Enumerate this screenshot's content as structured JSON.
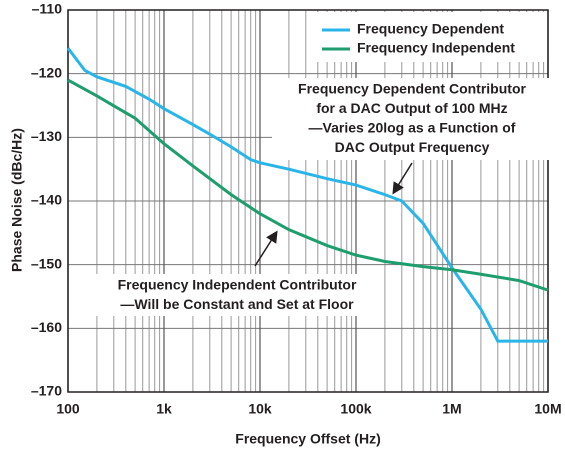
{
  "chart_data": {
    "type": "line",
    "xlabel": "Frequency Offset (Hz)",
    "ylabel": "Phase Noise (dBc/Hz)",
    "xlog": true,
    "grid": true,
    "minor_grid": true,
    "xlim": [
      100,
      10000000
    ],
    "xticks": [
      100,
      {
        "value": 1000,
        "label": "1k"
      },
      {
        "value": 10000,
        "label": "10k"
      },
      {
        "value": 100000,
        "label": "100k"
      },
      {
        "value": 1000000,
        "label": "1M"
      },
      {
        "value": 10000000,
        "label": "10M"
      }
    ],
    "ylim": [
      -170,
      -110
    ],
    "yticks": [
      {
        "value": -170,
        "label": "–170"
      },
      {
        "value": -160,
        "label": "–160"
      },
      {
        "value": -150,
        "label": "–150"
      },
      {
        "value": -140,
        "label": "–140"
      },
      {
        "value": -130,
        "label": "–130"
      },
      {
        "value": -120,
        "label": "–120"
      },
      {
        "value": -110,
        "label": "–110"
      }
    ],
    "legend": "upper right",
    "series": [
      {
        "name": "Frequency Dependent",
        "color": "#29b5e8",
        "x": [
          100,
          150,
          200,
          400,
          700,
          1000,
          2000,
          3000,
          5000,
          8000,
          10000,
          20000,
          50000,
          100000,
          200000,
          300000,
          500000,
          1000000,
          2000000,
          3000000,
          10000000
        ],
        "values": [
          -116,
          -119.5,
          -120.5,
          -122,
          -124,
          -125.5,
          -128,
          -129.5,
          -131.5,
          -133.5,
          -134,
          -135,
          -136.5,
          -137.5,
          -139,
          -140,
          -143.5,
          -150.5,
          -157,
          -162,
          -162
        ]
      },
      {
        "name": "Frequency Independent",
        "color": "#1e9e6e",
        "x": [
          100,
          200,
          500,
          1000,
          2000,
          5000,
          10000,
          20000,
          50000,
          100000,
          200000,
          500000,
          1000000,
          2000000,
          5000000,
          10000000
        ],
        "values": [
          -121,
          -123.5,
          -127,
          -131,
          -134.5,
          -139,
          -142,
          -144.5,
          -147,
          -148.5,
          -149.5,
          -150.3,
          -150.8,
          -151.5,
          -152.5,
          -154
        ]
      }
    ],
    "annotations": [
      {
        "lines": [
          "Frequency Dependent Contributor",
          "for a DAC Output of 100 MHz",
          "—Varies 20log as a Function of",
          "DAC Output Frequency"
        ]
      },
      {
        "lines": [
          "Frequency Independent Contributor",
          "—Will be Constant and Set at Floor"
        ]
      }
    ]
  }
}
